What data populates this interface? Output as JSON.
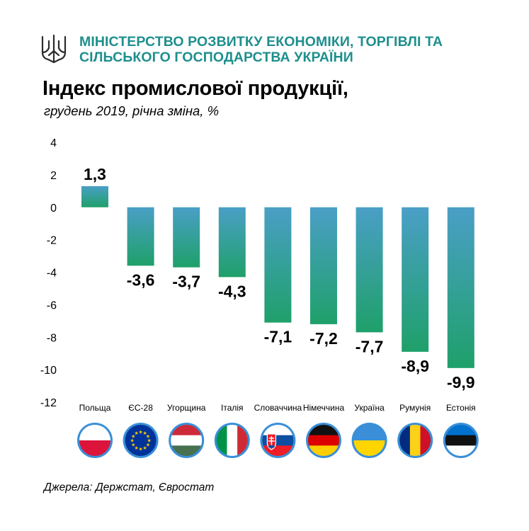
{
  "header": {
    "ministry_line1": "МІНІСТЕРСТВО РОЗВИТКУ ЕКОНОМІКИ, ТОРГІВЛІ ТА",
    "ministry_line2": "СІЛЬСЬКОГО ГОСПОДАРСТВА УКРАЇНИ",
    "emblem_icon": "tryzub-icon",
    "accent_color": "#1e8f8d"
  },
  "chart_data": {
    "type": "bar",
    "title": "Індекс промислової продукції,",
    "subtitle": "грудень 2019, річна зміна, %",
    "categories": [
      "Польща",
      "ЄС-28",
      "Угорщина",
      "Італія",
      "Словаччина",
      "Німеччина",
      "Україна",
      "Румунія",
      "Естонія"
    ],
    "values": [
      1.3,
      -3.6,
      -3.7,
      -4.3,
      -7.1,
      -7.2,
      -7.7,
      -8.9,
      -9.9
    ],
    "value_labels": [
      "1,3",
      "-3,6",
      "-3,7",
      "-4,3",
      "-7,1",
      "-7,2",
      "-7,7",
      "-8,9",
      "-9,9"
    ],
    "ylim": [
      -12,
      4
    ],
    "yticks": [
      4,
      2,
      0,
      -2,
      -4,
      -6,
      -8,
      -10,
      -12
    ],
    "grid": false,
    "bar_gradient": [
      "#4a9fc6",
      "#1fa06a"
    ],
    "flags": [
      "poland-flag-icon",
      "eu-flag-icon",
      "hungary-flag-icon",
      "italy-flag-icon",
      "slovakia-flag-icon",
      "germany-flag-icon",
      "ukraine-flag-icon",
      "romania-flag-icon",
      "estonia-flag-icon"
    ]
  },
  "footer": {
    "source": "Джерела: Держстат, Євростат"
  }
}
